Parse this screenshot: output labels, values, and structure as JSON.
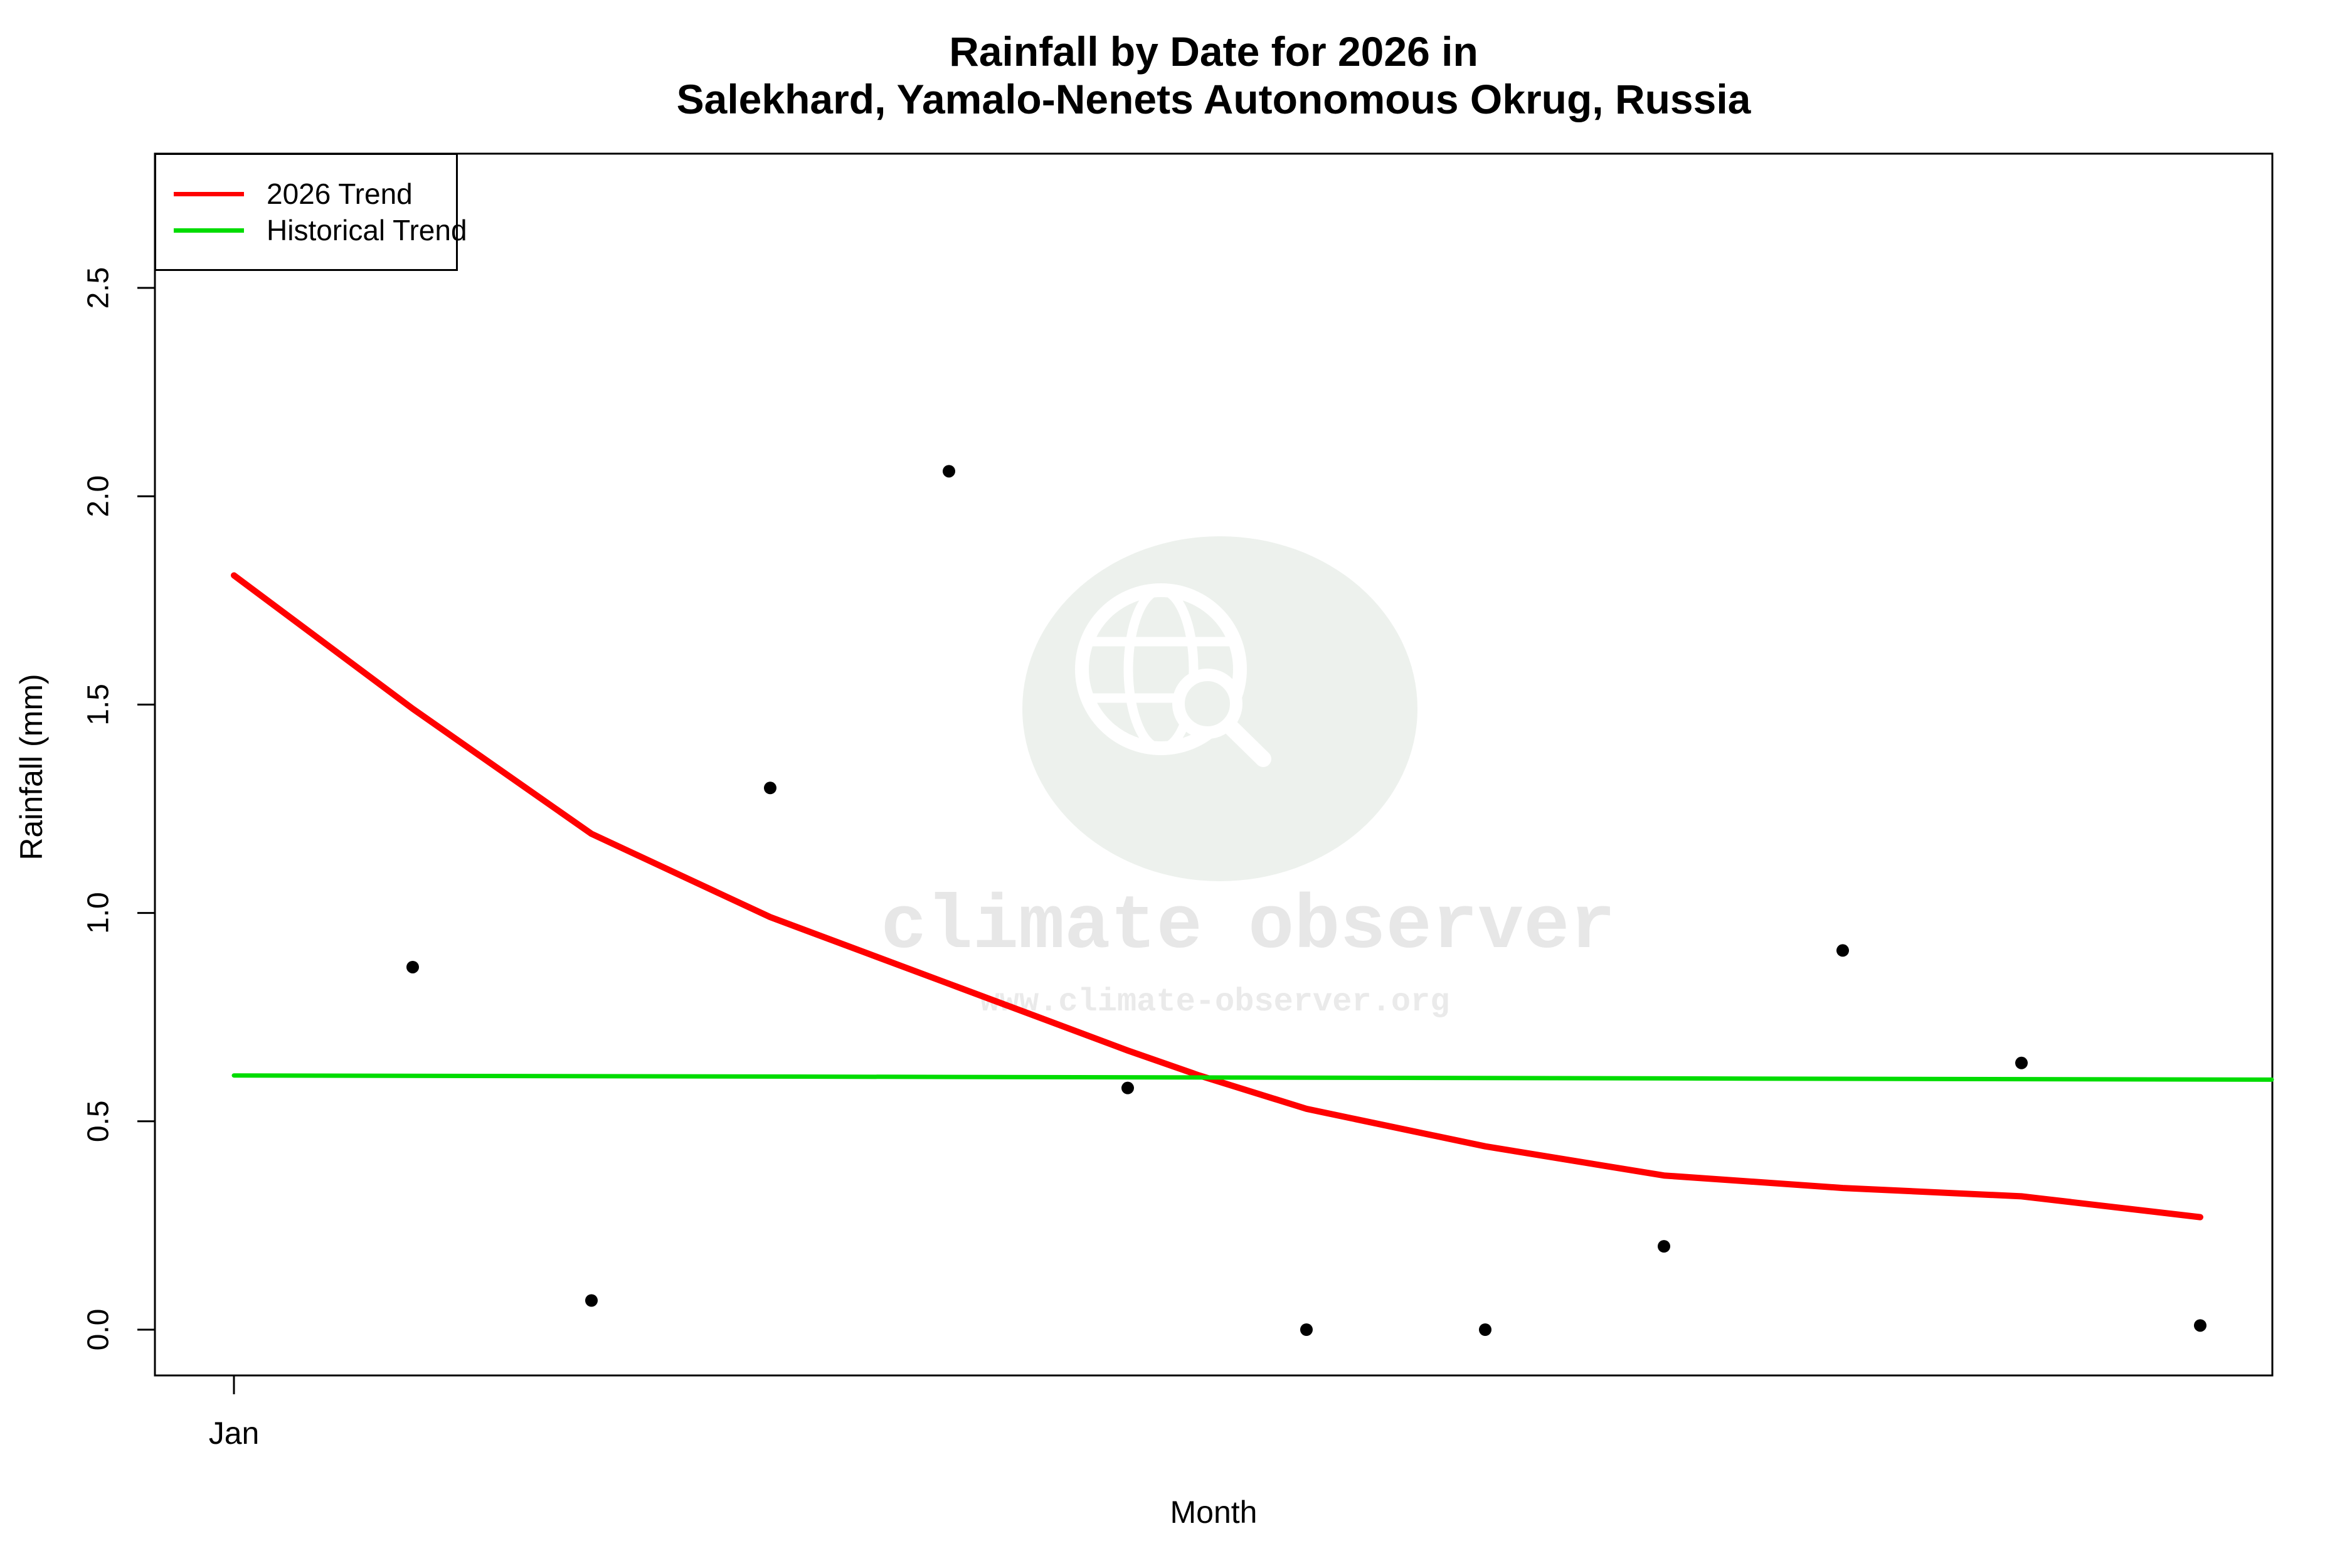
{
  "title": {
    "line1": "Rainfall by Date for 2026 in",
    "line2": "Salekhard, Yamalo-Nenets Autonomous Okrug, Russia"
  },
  "watermark": {
    "brand": "climate observer",
    "url": "www.climate-observer.org",
    "icon": "globe-magnifier-icon"
  },
  "legend": {
    "items": [
      {
        "label": "2026 Trend",
        "color": "#ff0000"
      },
      {
        "label": "Historical Trend",
        "color": "#00dc00"
      }
    ]
  },
  "chart_data": {
    "type": "scatter",
    "title": "Rainfall by Date for 2026 in Salekhard, Yamalo-Nenets Autonomous Okrug, Russia",
    "xlabel": "Month",
    "ylabel": "Rainfall (mm)",
    "grid": false,
    "legend_position": "top-left",
    "ylim": [
      -0.11,
      2.82
    ],
    "y_ticks": [
      0.0,
      0.5,
      1.0,
      1.5,
      2.0,
      2.5
    ],
    "x_ticks": [
      {
        "month": 1,
        "label": "Jan"
      }
    ],
    "points": {
      "color": "#000000",
      "months": [
        2,
        3,
        4,
        5,
        6,
        7,
        8,
        9,
        10,
        11,
        12
      ],
      "values": [
        0.87,
        0.07,
        1.3,
        2.06,
        0.58,
        0.0,
        0.0,
        0.2,
        0.91,
        0.64,
        0.01
      ]
    },
    "series": [
      {
        "name": "2026 Trend",
        "color": "#ff0000",
        "width": 10,
        "points": [
          [
            1,
            1.81
          ],
          [
            2,
            1.49
          ],
          [
            3,
            1.19
          ],
          [
            4,
            0.99
          ],
          [
            5,
            0.83
          ],
          [
            6,
            0.67
          ],
          [
            6.4,
            0.61
          ],
          [
            7,
            0.53
          ],
          [
            8,
            0.44
          ],
          [
            9,
            0.37
          ],
          [
            10,
            0.34
          ],
          [
            11,
            0.32
          ],
          [
            12,
            0.27
          ]
        ]
      },
      {
        "name": "Historical Trend",
        "color": "#00dc00",
        "width": 7,
        "points": [
          [
            1,
            0.61
          ],
          [
            12.4,
            0.6
          ]
        ]
      }
    ]
  }
}
